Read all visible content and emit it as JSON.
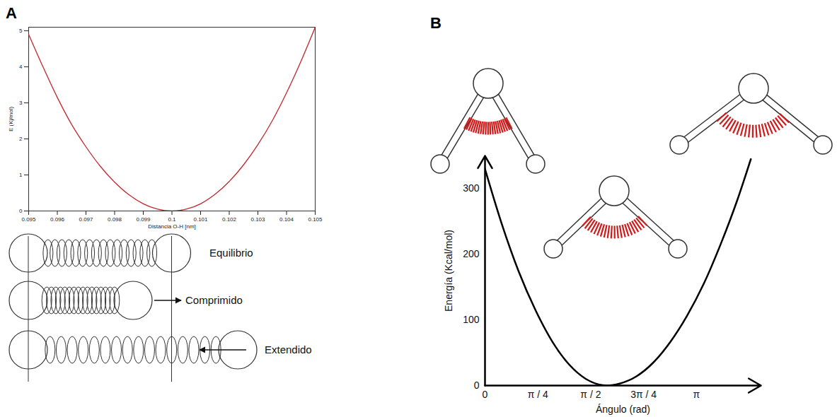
{
  "chart_data": [
    {
      "panel": "A",
      "type": "line",
      "xlabel": "Distancia O-H [nm]",
      "ylabel": "E (Kj/mol)",
      "x": [
        0.095,
        0.0955,
        0.096,
        0.0965,
        0.097,
        0.0975,
        0.098,
        0.0985,
        0.099,
        0.0995,
        0.1,
        0.1005,
        0.101,
        0.1015,
        0.102,
        0.1025,
        0.103,
        0.1035,
        0.104,
        0.1045,
        0.105
      ],
      "values": [
        4.9,
        4.0,
        3.15,
        2.4,
        1.78,
        1.24,
        0.8,
        0.45,
        0.2,
        0.05,
        0,
        0.05,
        0.2,
        0.46,
        0.82,
        1.28,
        1.84,
        2.5,
        3.28,
        4.15,
        5.1
      ],
      "color": "#c1272d",
      "xlim": [
        0.095,
        0.105
      ],
      "ylim": [
        0,
        5.1
      ],
      "xticks": [
        0.095,
        0.096,
        0.097,
        0.098,
        0.099,
        0.1,
        0.101,
        0.102,
        0.103,
        0.104,
        0.105
      ],
      "yticks": [
        0,
        1,
        2,
        3,
        4,
        5
      ],
      "annotations": [
        "Equilibrio",
        "Comprimido",
        "Extendido"
      ]
    },
    {
      "panel": "B",
      "type": "line",
      "xlabel": "Ángulo (rad)",
      "ylabel": "Energía (Kcal/mol)",
      "x": [
        0,
        0.25,
        0.5,
        0.75,
        1.0,
        1.25,
        1.5,
        1.75,
        1.82,
        2.0,
        2.25,
        2.5,
        2.75,
        3.0,
        3.25,
        3.5,
        3.75,
        3.95
      ],
      "values": [
        330,
        246,
        174,
        115,
        67,
        32,
        10,
        0.5,
        0,
        3,
        14,
        35,
        66,
        106,
        155,
        215,
        283,
        345
      ],
      "color": "#000000",
      "xlim": [
        0,
        4.1
      ],
      "ylim": [
        0,
        350
      ],
      "xticks": [
        0,
        {
          "value": 0.7854,
          "label": "π / 4"
        },
        {
          "value": 1.5708,
          "label": "π / 2"
        },
        {
          "value": 2.3562,
          "label": "3π / 4"
        },
        {
          "value": 3.1416,
          "label": "π"
        }
      ],
      "yticks": [
        0,
        100,
        200,
        300
      ]
    }
  ]
}
